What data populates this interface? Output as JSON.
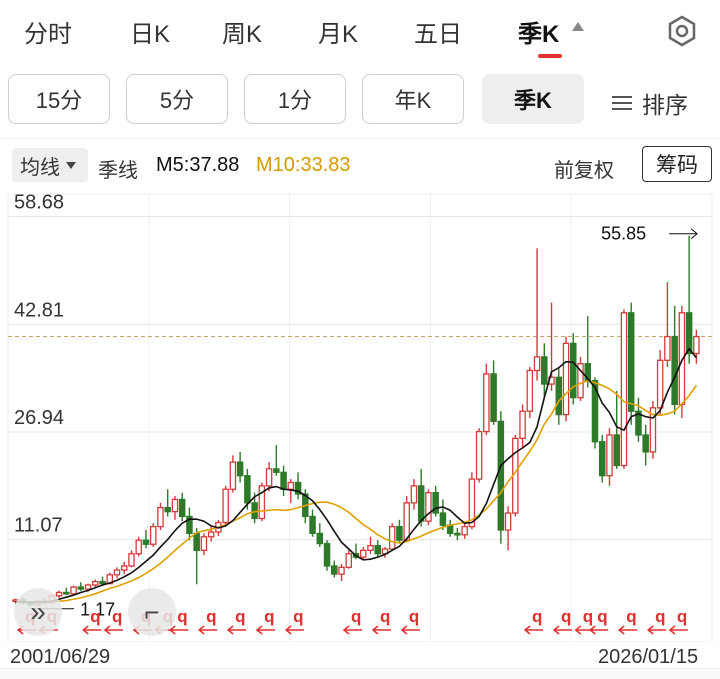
{
  "tabs": [
    {
      "label": "分时"
    },
    {
      "label": "日K"
    },
    {
      "label": "周K"
    },
    {
      "label": "月K"
    },
    {
      "label": "五日"
    },
    {
      "label": "季K"
    }
  ],
  "periods": [
    {
      "label": "15分"
    },
    {
      "label": "5分"
    },
    {
      "label": "1分"
    },
    {
      "label": "年K"
    },
    {
      "label": "季K"
    }
  ],
  "sort_label": "排序",
  "indicator": {
    "select": "均线",
    "name": "季线",
    "m5": "M5:37.88",
    "m10": "M10:33.83",
    "adjust": "前复权",
    "chip": "筹码"
  },
  "colors": {
    "up": "#d33b3b",
    "down": "#2f7a2a",
    "m5": "#111111",
    "m10": "#e0a000",
    "accent": "#e03030",
    "grid": "#e6e6e6",
    "priceline": "#c9a86a"
  },
  "chart_data": {
    "type": "candlestick",
    "y_ticks": [
      "58.68",
      "42.81",
      "26.94",
      "11.07"
    ],
    "y_tick_values": [
      58.68,
      42.81,
      26.94,
      11.07
    ],
    "ylim": [
      -4.0,
      62.0
    ],
    "last_price_line": 41.0,
    "max_label": "55.85",
    "min_label": "1.17",
    "x_start": "2001/06/29",
    "x_end": "2026/01/15",
    "ohlc": [
      [
        2.0,
        2.4,
        1.6,
        2.2
      ],
      [
        2.2,
        2.6,
        1.5,
        1.8
      ],
      [
        1.8,
        2.0,
        1.2,
        1.5
      ],
      [
        1.5,
        2.2,
        1.3,
        2.0
      ],
      [
        2.0,
        2.5,
        1.6,
        1.8
      ],
      [
        1.8,
        3.0,
        1.7,
        2.8
      ],
      [
        2.8,
        3.6,
        2.5,
        3.3
      ],
      [
        3.3,
        4.0,
        2.9,
        3.1
      ],
      [
        3.1,
        4.3,
        3.0,
        4.1
      ],
      [
        4.1,
        4.8,
        3.5,
        3.8
      ],
      [
        3.8,
        4.6,
        3.4,
        4.4
      ],
      [
        4.4,
        5.2,
        4.0,
        4.9
      ],
      [
        4.9,
        5.6,
        4.3,
        4.6
      ],
      [
        4.6,
        6.2,
        4.5,
        5.9
      ],
      [
        5.9,
        7.0,
        5.4,
        6.6
      ],
      [
        6.6,
        7.8,
        6.0,
        7.2
      ],
      [
        7.2,
        9.5,
        7.0,
        9.0
      ],
      [
        9.0,
        11.5,
        8.6,
        11.0
      ],
      [
        11.0,
        12.5,
        9.8,
        10.4
      ],
      [
        10.4,
        13.5,
        10.0,
        13.0
      ],
      [
        13.0,
        16.5,
        12.5,
        15.8
      ],
      [
        15.8,
        18.5,
        14.5,
        15.2
      ],
      [
        15.2,
        17.5,
        14.0,
        17.0
      ],
      [
        17.0,
        18.0,
        13.8,
        14.5
      ],
      [
        14.5,
        15.8,
        11.0,
        12.0
      ],
      [
        12.0,
        12.8,
        4.5,
        9.5
      ],
      [
        9.5,
        12.0,
        8.8,
        11.5
      ],
      [
        11.5,
        13.0,
        10.8,
        12.2
      ],
      [
        12.2,
        14.0,
        11.6,
        13.6
      ],
      [
        13.6,
        19.0,
        13.0,
        18.5
      ],
      [
        18.5,
        23.5,
        18.0,
        22.5
      ],
      [
        22.5,
        24.0,
        19.5,
        20.5
      ],
      [
        20.5,
        21.5,
        15.5,
        16.5
      ],
      [
        16.5,
        18.0,
        13.5,
        14.2
      ],
      [
        14.2,
        19.5,
        13.8,
        19.0
      ],
      [
        19.0,
        22.5,
        18.2,
        21.5
      ],
      [
        21.5,
        25.0,
        20.5,
        21.0
      ],
      [
        21.0,
        22.0,
        17.5,
        18.5
      ],
      [
        18.5,
        20.0,
        16.5,
        19.5
      ],
      [
        19.5,
        21.0,
        17.0,
        17.8
      ],
      [
        17.8,
        18.5,
        13.5,
        14.5
      ],
      [
        14.5,
        15.5,
        11.5,
        12.0
      ],
      [
        12.0,
        13.5,
        10.0,
        10.5
      ],
      [
        10.5,
        11.0,
        6.5,
        7.2
      ],
      [
        7.2,
        8.0,
        5.5,
        6.0
      ],
      [
        6.0,
        7.5,
        5.0,
        7.0
      ],
      [
        7.0,
        9.5,
        6.8,
        9.0
      ],
      [
        9.0,
        10.5,
        8.2,
        8.5
      ],
      [
        8.5,
        10.0,
        8.0,
        9.5
      ],
      [
        9.5,
        11.5,
        9.0,
        10.2
      ],
      [
        10.2,
        11.0,
        8.5,
        9.0
      ],
      [
        9.0,
        10.0,
        8.4,
        9.7
      ],
      [
        9.7,
        13.5,
        9.5,
        13.0
      ],
      [
        13.0,
        14.0,
        10.5,
        11.0
      ],
      [
        11.0,
        17.5,
        10.8,
        16.5
      ],
      [
        16.5,
        20.0,
        15.5,
        19.0
      ],
      [
        19.0,
        21.5,
        13.0,
        13.8
      ],
      [
        13.8,
        18.5,
        13.2,
        18.0
      ],
      [
        18.0,
        19.0,
        14.5,
        15.0
      ],
      [
        15.0,
        17.0,
        12.5,
        13.2
      ],
      [
        13.2,
        14.0,
        11.5,
        12.0
      ],
      [
        12.0,
        12.8,
        11.0,
        11.8
      ],
      [
        11.8,
        13.5,
        11.2,
        13.0
      ],
      [
        13.0,
        21.0,
        12.6,
        20.0
      ],
      [
        20.0,
        27.5,
        19.5,
        27.0
      ],
      [
        27.0,
        37.0,
        26.5,
        35.5
      ],
      [
        35.5,
        37.5,
        28.0,
        28.5
      ],
      [
        28.5,
        30.0,
        10.5,
        12.5
      ],
      [
        12.5,
        16.0,
        9.5,
        15.0
      ],
      [
        15.0,
        26.5,
        14.5,
        26.0
      ],
      [
        26.0,
        31.0,
        24.5,
        30.0
      ],
      [
        30.0,
        36.5,
        29.0,
        36.0
      ],
      [
        36.0,
        54.0,
        34.5,
        38.0
      ],
      [
        38.0,
        40.0,
        32.0,
        34.0
      ],
      [
        34.0,
        46.0,
        33.0,
        35.0
      ],
      [
        35.0,
        36.5,
        28.0,
        29.5
      ],
      [
        29.5,
        41.0,
        28.5,
        40.0
      ],
      [
        40.0,
        41.5,
        31.0,
        32.0
      ],
      [
        32.0,
        38.0,
        31.5,
        37.0
      ],
      [
        37.0,
        44.0,
        33.5,
        34.5
      ],
      [
        34.5,
        35.0,
        24.5,
        25.5
      ],
      [
        25.5,
        26.5,
        19.5,
        20.5
      ],
      [
        20.5,
        27.5,
        19.0,
        26.5
      ],
      [
        26.5,
        33.0,
        21.5,
        22.0
      ],
      [
        22.0,
        45.0,
        21.5,
        44.5
      ],
      [
        44.5,
        46.0,
        28.0,
        30.0
      ],
      [
        30.0,
        32.0,
        25.5,
        26.5
      ],
      [
        26.5,
        28.0,
        22.0,
        24.0
      ],
      [
        24.0,
        31.5,
        23.0,
        30.5
      ],
      [
        30.5,
        39.0,
        29.5,
        37.5
      ],
      [
        37.5,
        49.0,
        36.5,
        41.0
      ],
      [
        41.0,
        45.5,
        29.5,
        31.0
      ],
      [
        31.0,
        45.5,
        29.0,
        44.5
      ],
      [
        44.5,
        55.85,
        37.0,
        38.5
      ],
      [
        38.5,
        42.0,
        37.0,
        41.0
      ]
    ],
    "ma5": [
      1.9,
      1.9,
      1.85,
      1.85,
      1.9,
      2.0,
      2.3,
      2.6,
      2.9,
      3.3,
      3.6,
      4.0,
      4.4,
      4.7,
      5.1,
      5.6,
      6.2,
      7.0,
      7.9,
      8.8,
      10.0,
      11.1,
      12.4,
      13.5,
      14.1,
      14.1,
      13.8,
      13.1,
      12.8,
      13.1,
      13.9,
      15.1,
      16.3,
      17.4,
      18.0,
      18.7,
      18.9,
      18.5,
      18.4,
      18.2,
      17.6,
      16.8,
      15.5,
      14.0,
      12.3,
      10.7,
      9.7,
      8.7,
      8.1,
      8.2,
      8.5,
      8.9,
      9.5,
      10.1,
      11.2,
      12.6,
      13.9,
      14.9,
      15.7,
      15.9,
      15.4,
      14.4,
      13.5,
      13.6,
      14.5,
      16.4,
      19.2,
      22.0,
      23.0,
      23.9,
      24.6,
      25.4,
      27.7,
      32.0,
      35.8,
      36.4,
      37.3,
      37.2,
      36.0,
      34.8,
      33.5,
      31.2,
      29.8,
      27.7,
      27.2,
      29.2,
      29.6,
      29.2,
      29.0,
      30.1,
      32.8,
      35.0,
      37.5,
      39.2,
      37.88
    ],
    "ma10": [
      1.9,
      1.9,
      1.9,
      1.9,
      1.9,
      1.95,
      2.0,
      2.1,
      2.3,
      2.5,
      2.8,
      3.1,
      3.5,
      3.9,
      4.2,
      4.6,
      5.0,
      5.5,
      6.1,
      6.8,
      7.6,
      8.5,
      9.5,
      10.4,
      11.3,
      12.1,
      12.4,
      12.6,
      12.9,
      13.3,
      13.8,
      14.3,
      14.9,
      15.2,
      15.3,
      15.4,
      15.5,
      15.4,
      15.5,
      15.8,
      16.1,
      16.4,
      16.6,
      16.6,
      16.3,
      15.8,
      15.1,
      14.2,
      13.3,
      12.6,
      11.8,
      11.2,
      10.8,
      10.6,
      10.8,
      11.2,
      11.6,
      12.1,
      12.5,
      12.9,
      13.2,
      13.4,
      13.6,
      14.0,
      14.7,
      15.6,
      16.8,
      18.0,
      19.6,
      21.0,
      22.6,
      24.1,
      25.8,
      28.1,
      29.6,
      31.5,
      32.6,
      33.6,
      34.1,
      34.5,
      34.2,
      33.8,
      33.3,
      32.5,
      31.4,
      31.1,
      30.8,
      30.1,
      29.5,
      29.4,
      29.6,
      30.0,
      31.1,
      32.3,
      33.83
    ]
  },
  "markers_note": "q",
  "bottom": {
    "fab_left": "»",
    "fab_right": "⌐"
  }
}
